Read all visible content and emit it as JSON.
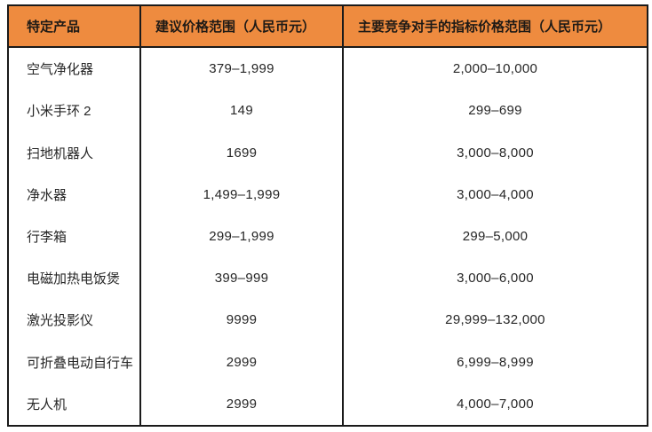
{
  "table": {
    "title_semantic": "xiaomi-product-price-comparison",
    "colors": {
      "header_bg": "#EE8B3F",
      "border": "#1A1A1A",
      "header_text": "#1E1A16",
      "body_text": "#262626",
      "page_bg": "#FFFFFF"
    },
    "header": {
      "product": "特定产品",
      "suggested": "建议价格范围（人民币元）",
      "competitor": "主要竞争对手的指标价格范围（人民币元）"
    },
    "rows": [
      {
        "product": "空气净化器",
        "suggested": "379–1,999",
        "competitor": "2,000–10,000"
      },
      {
        "product": "小米手环 2",
        "suggested": "149",
        "competitor": "299–699"
      },
      {
        "product": "扫地机器人",
        "suggested": "1699",
        "competitor": "3,000–8,000"
      },
      {
        "product": "净水器",
        "suggested": "1,499–1,999",
        "competitor": "3,000–4,000"
      },
      {
        "product": "行李箱",
        "suggested": "299–1,999",
        "competitor": "299–5,000"
      },
      {
        "product": "电磁加热电饭煲",
        "suggested": "399–999",
        "competitor": "3,000–6,000"
      },
      {
        "product": "激光投影仪",
        "suggested": "9999",
        "competitor": "29,999–132,000"
      },
      {
        "product": "可折叠电动自行车",
        "suggested": "2999",
        "competitor": "6,999–8,999"
      },
      {
        "product": "无人机",
        "suggested": "2999",
        "competitor": "4,000–7,000"
      }
    ]
  }
}
